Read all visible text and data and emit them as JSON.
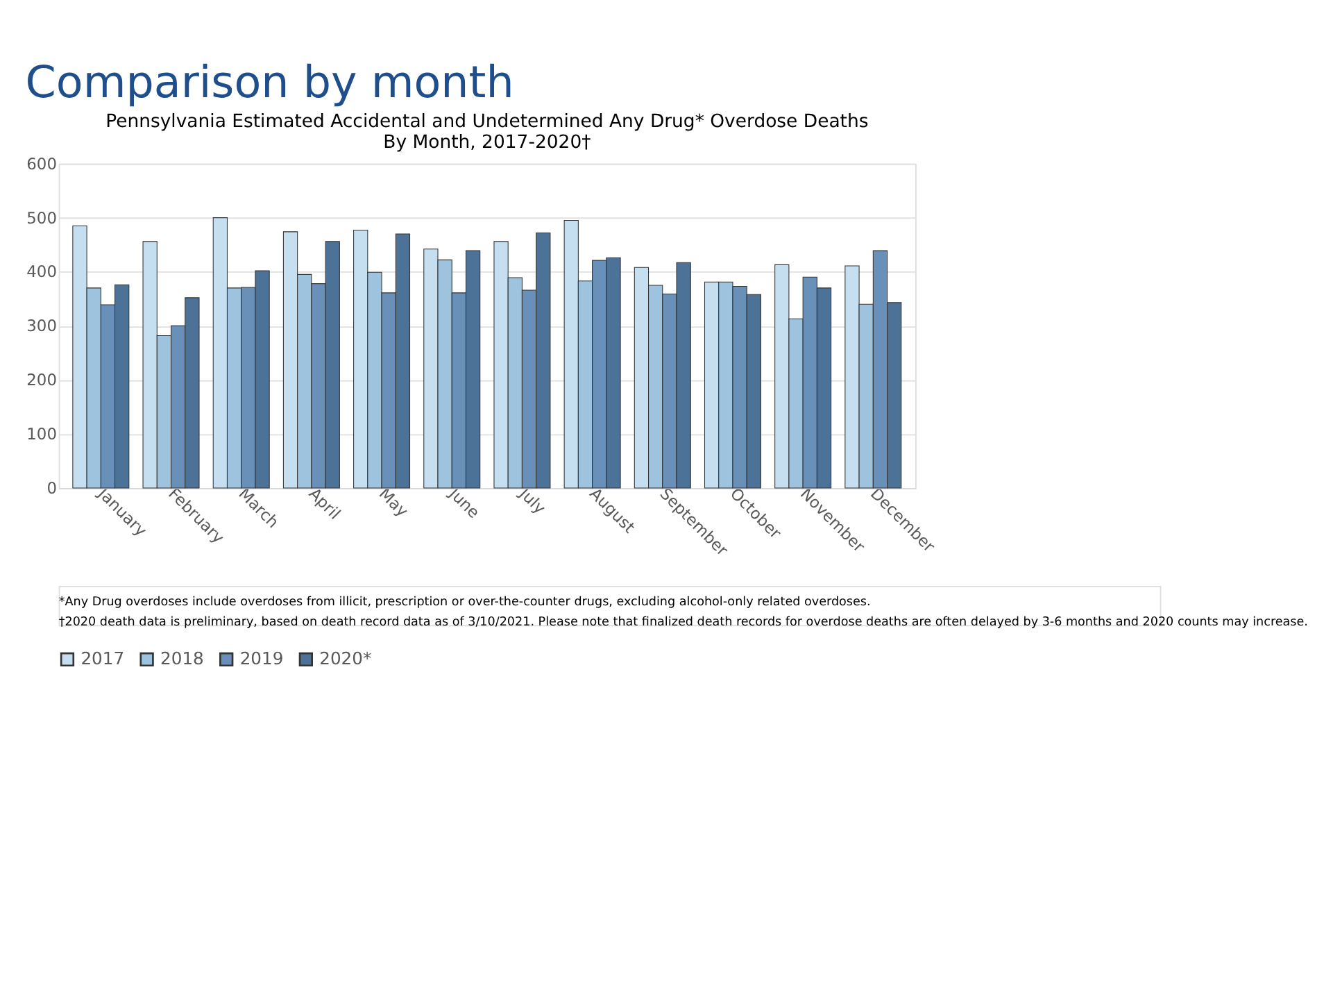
{
  "chart_data": {
    "type": "bar",
    "title": "Comparison by month",
    "subtitle": "Pennsylvania Estimated Accidental and Undetermined Any Drug* Overdose Deaths\nBy Month, 2017-2020†",
    "categories": [
      "January",
      "February",
      "March",
      "April",
      "May",
      "June",
      "July",
      "August",
      "September",
      "October",
      "November",
      "December"
    ],
    "series": [
      {
        "name": "2017",
        "color": "#c5dff0",
        "values": [
          485,
          456,
          500,
          474,
          477,
          442,
          456,
          495,
          408,
          381,
          413,
          411
        ]
      },
      {
        "name": "2018",
        "color": "#9dc3df",
        "values": [
          370,
          282,
          370,
          395,
          399,
          422,
          389,
          383,
          375,
          381,
          313,
          340
        ]
      },
      {
        "name": "2019",
        "color": "#6990b8",
        "values": [
          339,
          300,
          371,
          378,
          361,
          361,
          366,
          421,
          359,
          373,
          390,
          439
        ]
      },
      {
        "name": "2020*",
        "color": "#4d7298",
        "values": [
          376,
          352,
          402,
          456,
          470,
          439,
          472,
          426,
          417,
          358,
          370,
          343
        ]
      }
    ],
    "ylim": [
      0,
      600
    ],
    "yticks": [
      0,
      100,
      200,
      300,
      400,
      500,
      600
    ],
    "grid": "y",
    "legend": "bottom",
    "annotations": [
      "*Any Drug overdoses include overdoses from illicit, prescription or over-the-counter drugs, excluding alcohol-only related overdoses.",
      "†2020 death data is preliminary, based on death record data as of 3/10/2021. Please note that finalized death records for overdose deaths are often delayed by 3-6 months and 2020 counts may increase."
    ]
  }
}
